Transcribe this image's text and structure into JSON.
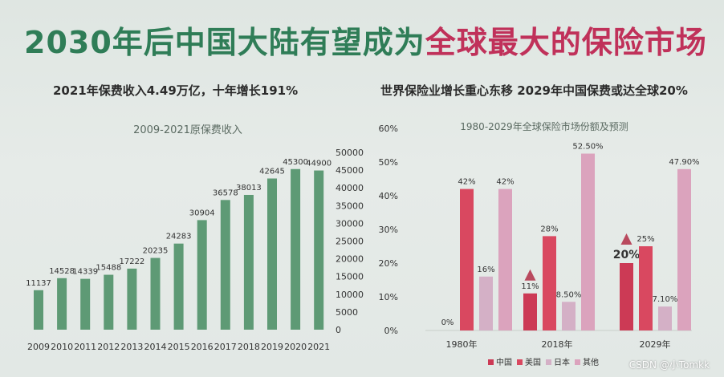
{
  "slide": {
    "title_part1": "2030年后中国大陆有望成为",
    "title_part2": "全球最大的保险市场",
    "subtitle_left": "2021年保费收入4.49万亿，十年增长191%",
    "subtitle_right": "世界保险业增长重心东移 2029年中国保费或达全球20%",
    "watermark": "CSDN @小Tomkk"
  },
  "chart_data": [
    {
      "type": "bar",
      "title": "2009-2021原保费收入",
      "categories": [
        "2009",
        "2010",
        "2011",
        "2012",
        "2013",
        "2014",
        "2015",
        "2016",
        "2017",
        "2018",
        "2019",
        "2020",
        "2021"
      ],
      "values": [
        11137,
        14528,
        14339,
        15488,
        17222,
        20235,
        24283,
        30904,
        36578,
        38013,
        42645,
        45300,
        44900
      ],
      "yticks": [
        0,
        5000,
        10000,
        15000,
        20000,
        25000,
        30000,
        35000,
        40000,
        45000,
        50000
      ],
      "ylim": [
        0,
        50000
      ],
      "y_axis_side": "right",
      "bar_color": "#5e9a75"
    },
    {
      "type": "bar",
      "title": "1980-2029年全球保险市场份额及预测",
      "categories": [
        "1980年",
        "2018年",
        "2029年"
      ],
      "series": [
        {
          "name": "中国",
          "values": [
            0,
            11,
            20
          ],
          "labels": [
            "0%",
            "11%",
            "20%"
          ],
          "color": "#cc3a55"
        },
        {
          "name": "美国",
          "values": [
            42,
            28,
            25
          ],
          "labels": [
            "42%",
            "28%",
            "25%"
          ],
          "color": "#d94860"
        },
        {
          "name": "日本",
          "values": [
            16,
            8.5,
            7.1
          ],
          "labels": [
            "16%",
            "8.50%",
            "7.10%"
          ],
          "color": "#d4b0c6"
        },
        {
          "name": "其他",
          "values": [
            42,
            52.5,
            47.9
          ],
          "labels": [
            "42%",
            "52.50%",
            "47.90%"
          ],
          "color": "#dba3bd"
        }
      ],
      "yticks": [
        "0%",
        "10%",
        "20%",
        "30%",
        "40%",
        "50%",
        "60%"
      ],
      "ylim": [
        0,
        60
      ],
      "y_axis_side": "left",
      "legend_position": "bottom"
    }
  ]
}
